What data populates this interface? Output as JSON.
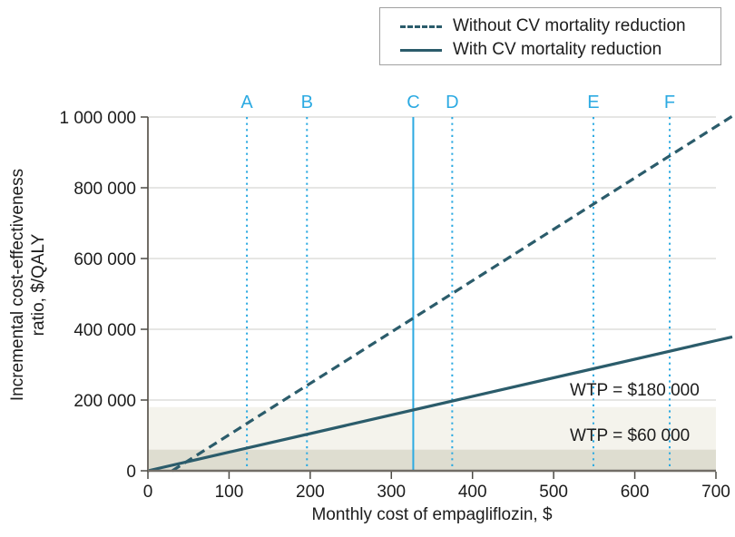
{
  "figure": {
    "legend": {
      "items": [
        {
          "label": "Without CV mortality reduction",
          "line_style": "dashed"
        },
        {
          "label": "With CV mortality reduction",
          "line_style": "solid"
        }
      ]
    }
  },
  "chart_data": {
    "type": "line",
    "title": "",
    "xlabel": "Monthly cost of empagliflozin, $",
    "ylabel": "Incremental cost-effectiveness ratio, $/QALY",
    "ylabel_lines": [
      "Incremental cost-effectiveness",
      "ratio, $/QALY"
    ],
    "xlim": [
      0,
      700
    ],
    "ylim": [
      0,
      1000000
    ],
    "xticks": [
      0,
      100,
      200,
      300,
      400,
      500,
      600,
      700
    ],
    "yticks": [
      0,
      200000,
      400000,
      600000,
      800000,
      1000000
    ],
    "ytick_labels": [
      "0",
      "200 000",
      "400 000",
      "600 000",
      "800 000",
      "1 000 000"
    ],
    "grid": "horizontal",
    "legend_position": "top-right",
    "series": [
      {
        "name": "Without CV mortality reduction",
        "line_style": "dashed",
        "points": [
          [
            30,
            0
          ],
          [
            700,
            973000
          ]
        ]
      },
      {
        "name": "With CV mortality reduction",
        "line_style": "solid",
        "points": [
          [
            0,
            0
          ],
          [
            700,
            368000
          ]
        ]
      }
    ],
    "scenario_markers": [
      {
        "label": "A",
        "x": 122,
        "style": "dotted"
      },
      {
        "label": "B",
        "x": 196,
        "style": "dotted"
      },
      {
        "label": "C",
        "x": 327,
        "style": "solid"
      },
      {
        "label": "D",
        "x": 375,
        "style": "dotted"
      },
      {
        "label": "E",
        "x": 549,
        "style": "dotted"
      },
      {
        "label": "F",
        "x": 643,
        "style": "dotted"
      }
    ],
    "wtp_bands": [
      {
        "label": "WTP = $60 000",
        "y_from": 0,
        "y_to": 60000,
        "fill": "#deddd0",
        "label_pos": [
          520,
          85000
        ]
      },
      {
        "label": "WTP = $180 000",
        "y_from": 60000,
        "y_to": 180000,
        "fill": "#f4f3ec",
        "label_pos": [
          520,
          213000
        ]
      }
    ],
    "colors": {
      "line": "#2b5c6b",
      "accent": "#2caae2",
      "grid": "#d8d8d4",
      "axis": "#716d66",
      "tick": "#4c4a45",
      "text": "#1c1c1c"
    }
  }
}
